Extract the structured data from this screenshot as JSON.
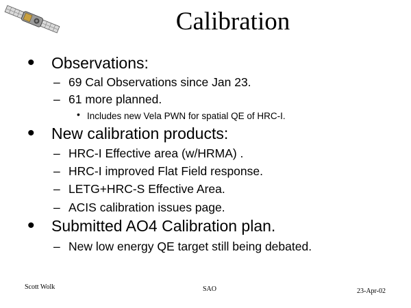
{
  "slide": {
    "title": "Calibration",
    "logo_icon": "satellite-icon",
    "sections": [
      {
        "heading": "Observations:",
        "items": [
          "69 Cal Observations since Jan 23.",
          "61 more planned."
        ],
        "subitems": [
          "Includes new Vela PWN for spatial QE of HRC-I."
        ]
      },
      {
        "heading": "New calibration products:",
        "items": [
          "HRC-I Effective area (w/HRMA) .",
          "HRC-I improved Flat Field response.",
          "LETG+HRC-S Effective Area.",
          "ACIS calibration issues page."
        ]
      },
      {
        "heading": "Submitted AO4 Calibration plan.",
        "items": [
          "New low energy QE target still being debated."
        ]
      }
    ],
    "markers": {
      "level1": "•",
      "level2": "–",
      "level3": "•"
    },
    "footer": {
      "author": "Scott Wolk",
      "org": "SAO",
      "date": "23-Apr-02"
    }
  }
}
